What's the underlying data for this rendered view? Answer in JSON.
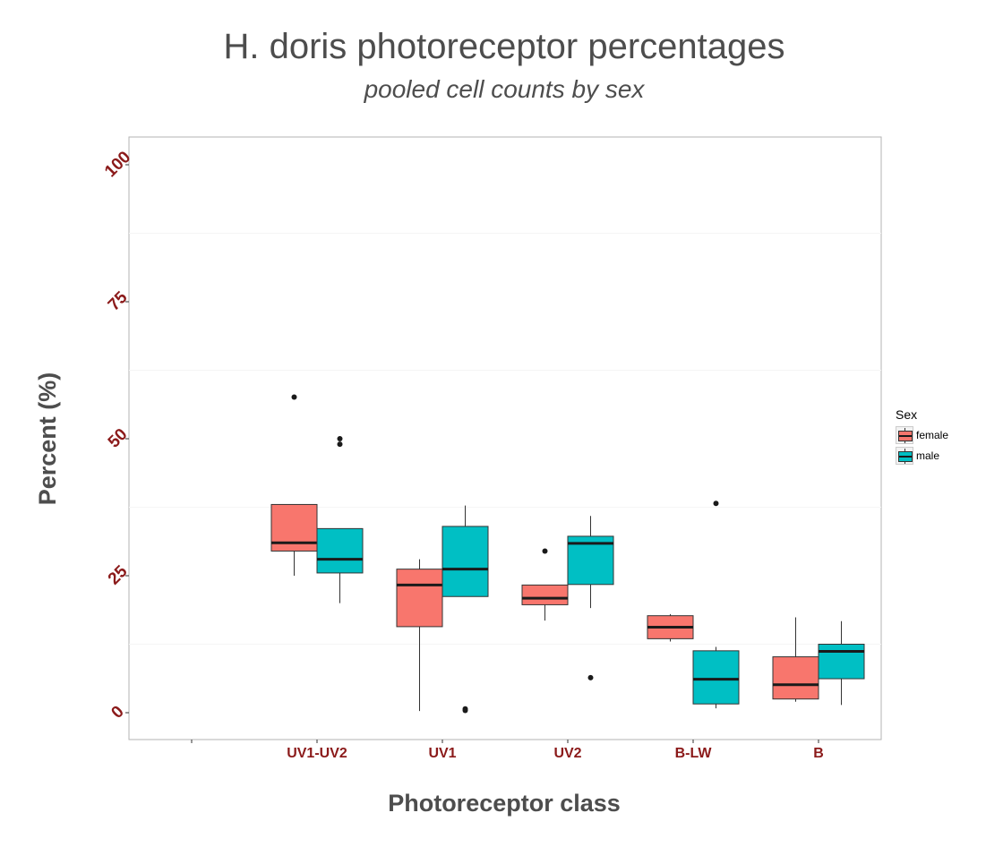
{
  "chart_data": {
    "type": "boxplot",
    "title": "H. doris photoreceptor percentages",
    "subtitle": "pooled cell counts by sex",
    "xlabel": "Photoreceptor class",
    "ylabel": "Percent (%)",
    "ylim": [
      -5,
      105
    ],
    "yticks": [
      "0",
      "25",
      "50",
      "75",
      "100"
    ],
    "categories": [
      "",
      "UV1-UV2",
      "UV1",
      "UV2",
      "B-LW",
      "B"
    ],
    "legend": {
      "title": "Sex",
      "placement": "right"
    },
    "grid": true,
    "series": [
      {
        "name": "female",
        "color": "#f8766d",
        "boxes": [
          {
            "category": "UV1-UV2",
            "min": 25,
            "q1": 29.5,
            "median": 31,
            "q3": 38,
            "max": 38,
            "outliers": [
              57.6
            ]
          },
          {
            "category": "UV1",
            "min": 0.3,
            "q1": 15.7,
            "median": 23.3,
            "q3": 26.2,
            "max": 28,
            "outliers": []
          },
          {
            "category": "UV2",
            "min": 16.8,
            "q1": 19.7,
            "median": 20.9,
            "q3": 23.3,
            "max": 23.3,
            "outliers": [
              29.5
            ]
          },
          {
            "category": "B-LW",
            "min": 13,
            "q1": 13.5,
            "median": 15.6,
            "q3": 17.7,
            "max": 18,
            "outliers": []
          },
          {
            "category": "B",
            "min": 2,
            "q1": 2.5,
            "median": 5.1,
            "q3": 10.2,
            "max": 17.4,
            "outliers": []
          }
        ]
      },
      {
        "name": "male",
        "color": "#00bfc4",
        "boxes": [
          {
            "category": "UV1-UV2",
            "min": 20,
            "q1": 25.5,
            "median": 28,
            "q3": 33.6,
            "max": 33.6,
            "outliers": [
              50,
              49
            ]
          },
          {
            "category": "UV1",
            "min": 21.2,
            "q1": 21.2,
            "median": 26.2,
            "q3": 34,
            "max": 37.8,
            "outliers": [
              0.4,
              0.7
            ]
          },
          {
            "category": "UV2",
            "min": 19.1,
            "q1": 23.4,
            "median": 30.9,
            "q3": 32.2,
            "max": 35.9,
            "outliers": [
              6.4
            ]
          },
          {
            "category": "B-LW",
            "min": 0.8,
            "q1": 1.6,
            "median": 6.1,
            "q3": 11.3,
            "max": 12,
            "outliers": [
              38.2
            ]
          },
          {
            "category": "B",
            "min": 1.4,
            "q1": 6.2,
            "median": 11.2,
            "q3": 12.5,
            "max": 16.7,
            "outliers": []
          }
        ]
      }
    ]
  }
}
